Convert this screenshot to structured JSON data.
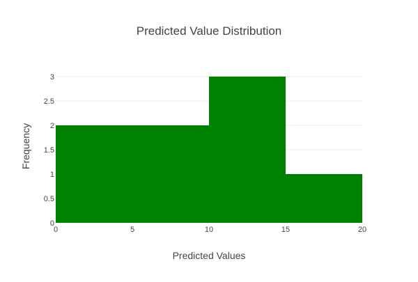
{
  "chart_data": {
    "type": "bar",
    "title": "Predicted Value Distribution",
    "xlabel": "Predicted Values",
    "ylabel": "Frequency",
    "bins": [
      {
        "x0": 0,
        "x1": 10,
        "value": 2
      },
      {
        "x0": 10,
        "x1": 15,
        "value": 3
      },
      {
        "x0": 15,
        "x1": 20,
        "value": 1
      }
    ],
    "xlim": [
      0,
      20
    ],
    "ylim": [
      0,
      3
    ],
    "xticks": [
      0,
      5,
      10,
      15,
      20
    ],
    "yticks": [
      0,
      0.5,
      1,
      1.5,
      2,
      2.5,
      3
    ],
    "bar_color": "#008000",
    "grid": true,
    "grid_color": "#eeeeee"
  }
}
